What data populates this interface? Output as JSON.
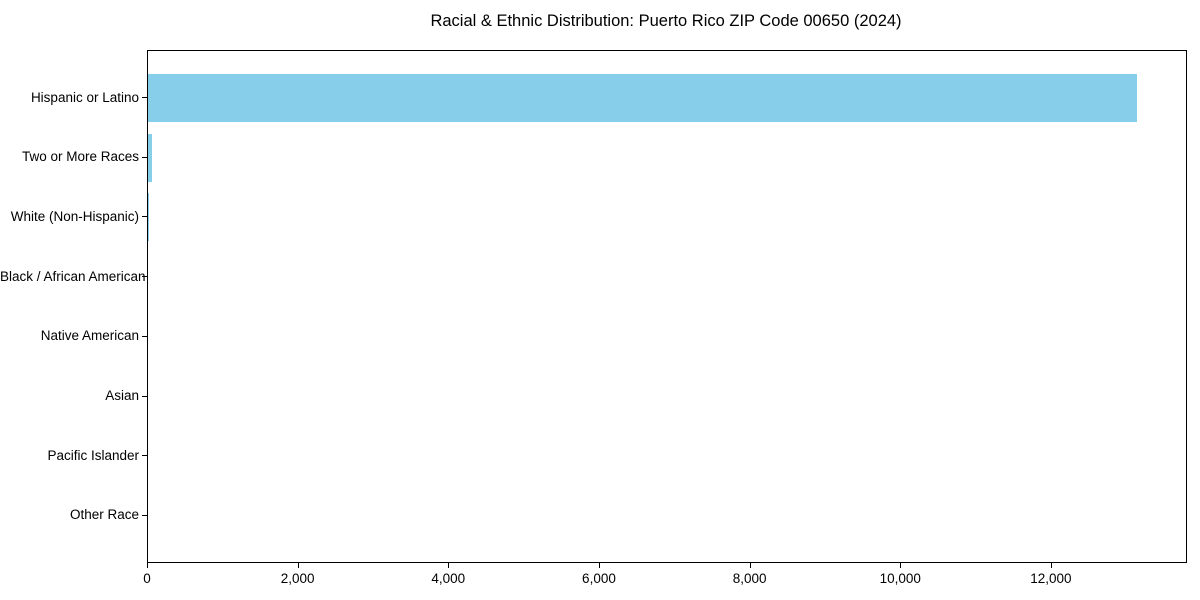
{
  "title": "Racial & Ethnic Distribution: Puerto Rico ZIP Code 00650 (2024)",
  "chart_data": {
    "type": "bar",
    "orientation": "horizontal",
    "title": "Racial & Ethnic Distribution: Puerto Rico ZIP Code 00650 (2024)",
    "xlabel": "",
    "ylabel": "",
    "categories": [
      "Hispanic or Latino",
      "Two or More Races",
      "White (Non-Hispanic)",
      "Black / African American",
      "Native American",
      "Asian",
      "Pacific Islander",
      "Other Race"
    ],
    "values": [
      13130,
      56,
      13,
      0,
      0,
      0,
      0,
      0
    ],
    "x_ticks": [
      0,
      2000,
      4000,
      6000,
      8000,
      10000,
      12000
    ],
    "x_tick_labels": [
      "0",
      "2,000",
      "4,000",
      "6,000",
      "8,000",
      "10,000",
      "12,000"
    ],
    "xlim": [
      0,
      13780
    ],
    "bar_color": "#87CEEB",
    "frame_color": "#000000",
    "grid": false,
    "legend": null
  }
}
